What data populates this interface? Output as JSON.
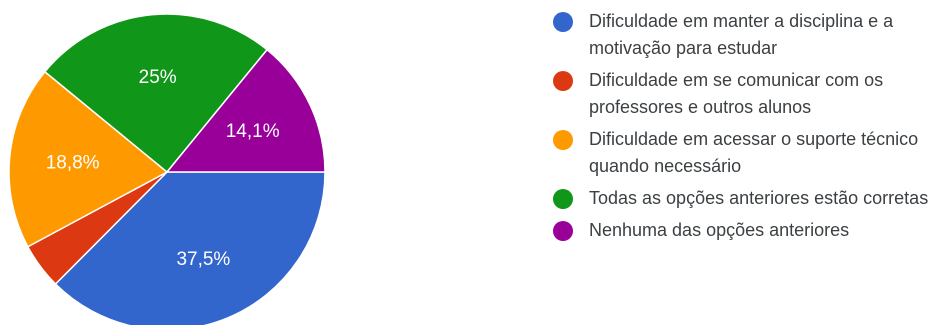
{
  "chart_data": {
    "type": "pie",
    "slices": [
      {
        "label": "Dificuldade em manter a disciplina e a motivação para estudar",
        "value": 37.5,
        "display": "37,5%",
        "color": "#3366cc"
      },
      {
        "label": "Dificuldade em se comunicar com os professores e outros alunos",
        "value": 4.7,
        "display": "",
        "color": "#dc3912"
      },
      {
        "label": "Dificuldade em acessar o suporte técnico quando necessário",
        "value": 18.8,
        "display": "18,8%",
        "color": "#ff9900"
      },
      {
        "label": "Todas as opções anteriores estão corretas",
        "value": 25,
        "display": "25%",
        "color": "#109618"
      },
      {
        "label": "Nenhuma das opções anteriores",
        "value": 14.1,
        "display": "14,1%",
        "color": "#990099"
      }
    ],
    "legend_position": "right"
  }
}
